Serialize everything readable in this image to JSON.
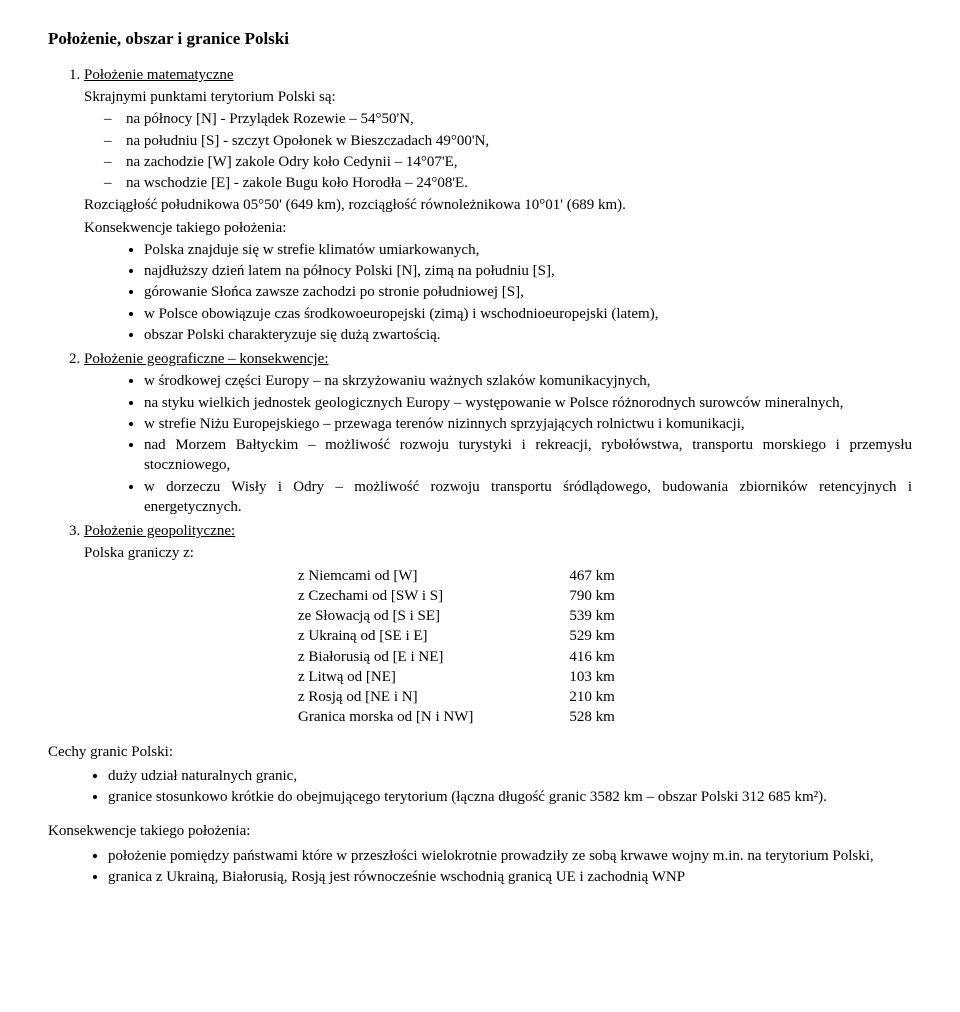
{
  "title": "Położenie, obszar i granice Polski",
  "item1": {
    "heading": "Położenie matematyczne",
    "intro": "Skrajnymi punktami terytorium Polski są:",
    "points": [
      "na północy [N] - Przylądek Rozewie – 54°50'N,",
      "na południu [S] - szczyt Opołonek w Bieszczadach 49°00'N,",
      "na zachodzie [W] zakole Odry koło Cedynii – 14°07'E,",
      "na wschodzie [E] - zakole Bugu koło Horodła – 24°08'E."
    ],
    "rozciag": "Rozciągłość południkowa 05°50' (649 km), rozciągłość równoleżnikowa 10°01' (689 km).",
    "konsek_label": "Konsekwencje takiego położenia:",
    "konsek": [
      "Polska znajduje się w strefie klimatów umiarkowanych,",
      "najdłuższy dzień latem na północy Polski [N], zimą na południu [S],",
      "górowanie Słońca zawsze zachodzi po stronie południowej [S],",
      "w Polsce obowiązuje czas środkowoeuropejski (zimą) i wschodnioeuropejski (latem),",
      "obszar Polski charakteryzuje się dużą zwartością."
    ]
  },
  "item2": {
    "heading": "Położenie geograficzne – konsekwencje:",
    "bullets": [
      "w środkowej części Europy – na skrzyżowaniu ważnych szlaków komunikacyjnych,",
      "na styku wielkich jednostek geologicznych Europy – występowanie w Polsce różnorodnych surowców mineralnych,",
      "w strefie Niżu Europejskiego – przewaga terenów nizinnych sprzyjających rolnictwu i komunikacji,",
      "nad Morzem Bałtyckim – możliwość rozwoju turystyki i rekreacji, rybołówstwa, transportu morskiego i przemysłu stoczniowego,",
      "w dorzeczu Wisły i Odry – możliwość rozwoju transportu śródlądowego, budowania zbiorników retencyjnych i energetycznych."
    ]
  },
  "item3": {
    "heading": "Położenie geopolityczne:",
    "intro": "Polska graniczy z:",
    "borders": [
      {
        "name": "z Niemcami  od [W]",
        "len": "467 km"
      },
      {
        "name": "z Czechami  od [SW i S]",
        "len": "790 km"
      },
      {
        "name": "ze Słowacją  od [S i SE]",
        "len": "539 km"
      },
      {
        "name": "z Ukrainą od [SE i E]",
        "len": "529 km"
      },
      {
        "name": "z Białorusią od [E i NE]",
        "len": "416 km"
      },
      {
        "name": "z Litwą od [NE]",
        "len": "103 km"
      },
      {
        "name": "z Rosją od [NE i N]",
        "len": "210 km"
      },
      {
        "name": "Granica morska od [N i NW]",
        "len": "528 km"
      }
    ]
  },
  "cechy": {
    "heading": "Cechy granic Polski:",
    "bullets": [
      "duży udział naturalnych granic,",
      "granice stosunkowo krótkie do obejmującego terytorium (łączna długość granic 3582 km – obszar Polski 312 685 km²)."
    ]
  },
  "konsek2": {
    "heading": "Konsekwencje takiego położenia:",
    "bullets": [
      "położenie pomiędzy państwami które w przeszłości wielokrotnie prowadziły ze sobą krwawe wojny m.in. na terytorium Polski,",
      "granica z Ukrainą, Białorusią, Rosją jest równocześnie wschodnią granicą UE i zachodnią WNP"
    ]
  }
}
